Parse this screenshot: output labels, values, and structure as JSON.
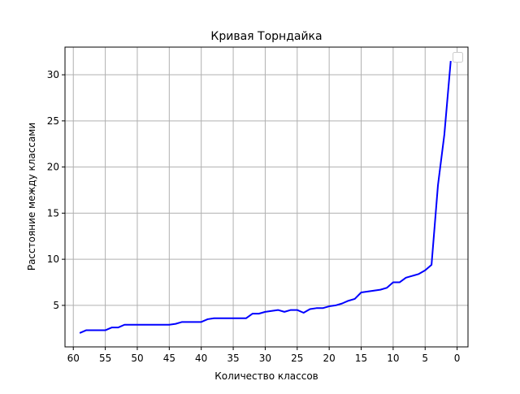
{
  "chart_data": {
    "type": "line",
    "title": "Кривая Торндайка",
    "xlabel": "Количество классов",
    "ylabel": "Расстояние между классами",
    "x_inverted": true,
    "xlim": [
      61.3,
      -1.7
    ],
    "ylim": [
      0.5,
      33
    ],
    "xticks": [
      60,
      55,
      50,
      45,
      40,
      35,
      30,
      25,
      20,
      15,
      10,
      5,
      0
    ],
    "yticks": [
      5,
      10,
      15,
      20,
      25,
      30
    ],
    "grid": true,
    "legend": "top-right (empty)",
    "series": [
      {
        "color": "#0000ff",
        "x": [
          59,
          58,
          57,
          56,
          55,
          54,
          53,
          52,
          51,
          50,
          49,
          48,
          47,
          46,
          45,
          44,
          43,
          42,
          41,
          40,
          39,
          38,
          37,
          36,
          35,
          34,
          33,
          32,
          31,
          30,
          29,
          28,
          27,
          26,
          25,
          24,
          23,
          22,
          21,
          20,
          19,
          18,
          17,
          16,
          15,
          14,
          13,
          12,
          11,
          10,
          9,
          8,
          7,
          6,
          5,
          4,
          3,
          2,
          1
        ],
        "y": [
          2.0,
          2.3,
          2.3,
          2.3,
          2.3,
          2.6,
          2.6,
          2.9,
          2.9,
          2.9,
          2.9,
          2.9,
          2.9,
          2.9,
          2.9,
          3.0,
          3.2,
          3.2,
          3.2,
          3.2,
          3.5,
          3.6,
          3.6,
          3.6,
          3.6,
          3.6,
          3.6,
          4.1,
          4.1,
          4.3,
          4.4,
          4.5,
          4.3,
          4.5,
          4.5,
          4.2,
          4.6,
          4.7,
          4.7,
          4.9,
          5.0,
          5.2,
          5.5,
          5.7,
          6.4,
          6.5,
          6.6,
          6.7,
          6.9,
          7.5,
          7.5,
          8.0,
          8.2,
          8.4,
          8.8,
          9.4,
          18.0,
          23.5,
          31.5
        ]
      }
    ]
  }
}
